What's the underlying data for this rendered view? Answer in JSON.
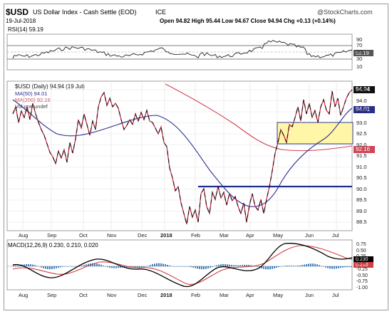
{
  "header": {
    "symbol": "$USD",
    "name": "US Dollar Index - Cash Settle (EOD)",
    "exchange": "ICE",
    "date": "19-Jul-2018",
    "watermark": "@StockCharts.com",
    "quote": "Open 94.82  High 95.44  Low 94.67  Close 94.94  Chg +0.13 (+0.14%)"
  },
  "rsi_panel": {
    "label": "RSI(14) 59.19",
    "current_tag": "59.19",
    "ticks": [
      "70",
      "50",
      "30"
    ],
    "top_tick": "90",
    "bottom_tick": "10"
  },
  "price_panel": {
    "legend": [
      "$USD (Daily) 94.94 (19 Jul)",
      "MA(50) 94.01",
      "MA(200) 92.16",
      "Volume undef"
    ],
    "ticks": [
      "94.5",
      "94.0",
      "93.5",
      "93.0",
      "92.5",
      "92.0",
      "91.5",
      "91.0",
      "90.5",
      "90.0",
      "89.5",
      "89.0",
      "88.5"
    ],
    "tags": {
      "close": "94.94",
      "ma50": "94.01",
      "ma200": "92.16"
    },
    "support_level": 90.5
  },
  "x_axis_labels": [
    "Aug",
    "Sep",
    "Oct",
    "Nov",
    "Dec",
    "2018",
    "Feb",
    "Mar",
    "Apr",
    "May",
    "Jun",
    "Jul"
  ],
  "macd_panel": {
    "label": "MACD(12,26,9) 0.230, 0.210, 0.020",
    "ticks": [
      "0.75",
      "0.50",
      "0.25",
      "0.00",
      "-0.25",
      "-0.50",
      "-0.75",
      "-1.00"
    ],
    "tags": {
      "macd": "0.230",
      "signal": "0.210"
    }
  },
  "colors": {
    "price": "#111111",
    "price_down": "#c8102e",
    "ma50": "#2a2f8f",
    "ma200": "#d04455",
    "support": "#1f2f8f",
    "zone_fill": "#fff6a8",
    "zone_border": "#2a3a8c",
    "macd": "#000000",
    "signal": "#d04040",
    "histogram": "#3f80c0",
    "rsi": "#222222"
  }
}
